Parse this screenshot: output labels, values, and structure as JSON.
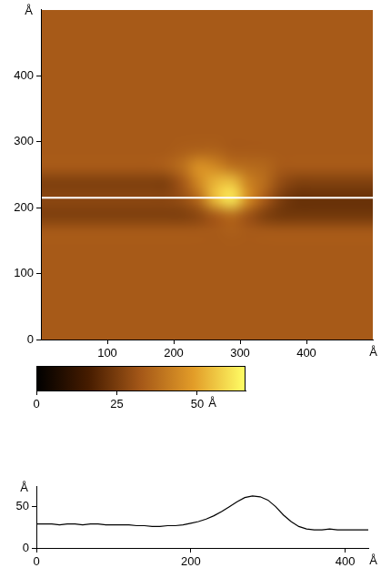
{
  "chart_data": [
    {
      "type": "heatmap",
      "x": [
        12.5,
        37.5,
        62.5,
        87.5,
        112.5,
        137.5,
        162.5,
        187.5,
        212.5,
        237.5,
        262.5,
        287.5,
        312.5,
        337.5,
        362.5,
        387.5,
        412.5,
        437.5,
        462.5,
        487.5
      ],
      "y": [
        12.5,
        37.5,
        62.5,
        87.5,
        112.5,
        137.5,
        162.5,
        187.5,
        212.5,
        237.5,
        262.5,
        287.5,
        312.5,
        337.5,
        362.5,
        387.5,
        412.5,
        437.5,
        462.5,
        487.5
      ],
      "cells": [
        [
          33,
          33,
          33,
          33,
          33,
          33,
          33,
          33,
          33,
          33,
          33,
          33,
          33,
          33,
          33,
          33,
          33,
          33,
          33,
          33
        ],
        [
          33,
          33,
          33,
          33,
          33,
          33,
          33,
          33,
          33,
          33,
          33,
          33,
          33,
          33,
          33,
          33,
          33,
          33,
          33,
          33
        ],
        [
          33,
          33,
          33,
          33,
          33,
          33,
          33,
          33,
          33,
          33,
          33,
          33,
          33,
          33,
          33,
          33,
          33,
          33,
          33,
          33
        ],
        [
          33,
          33,
          33,
          33,
          33,
          33,
          33,
          33,
          33,
          33,
          33,
          33,
          33,
          33,
          33,
          33,
          33,
          33,
          33,
          33
        ],
        [
          33,
          33,
          33,
          33,
          33,
          33,
          33,
          33,
          33,
          33,
          33,
          33,
          33,
          33,
          33,
          33,
          33,
          33,
          33,
          33
        ],
        [
          33,
          33,
          33,
          33,
          33,
          33,
          33,
          33,
          33,
          33,
          33,
          33,
          33,
          33,
          33,
          33,
          33,
          33,
          33,
          33
        ],
        [
          33,
          33,
          33,
          33,
          33,
          33,
          33,
          33,
          33,
          33,
          33,
          34,
          33,
          33,
          33,
          33,
          33,
          33,
          33,
          33
        ],
        [
          26,
          26,
          26,
          26,
          26,
          26,
          26,
          26,
          26,
          28,
          33,
          37,
          31,
          26,
          24,
          24,
          24,
          24,
          24,
          24
        ],
        [
          28,
          28,
          28,
          28,
          28,
          28,
          28,
          28,
          30,
          37,
          54,
          61,
          45,
          33,
          25,
          22,
          22,
          22,
          22,
          22
        ],
        [
          26,
          26,
          26,
          26,
          26,
          26,
          26,
          26,
          32,
          44,
          53,
          55,
          43,
          37,
          29,
          26,
          26,
          26,
          26,
          26
        ],
        [
          33,
          33,
          33,
          33,
          33,
          33,
          33,
          34,
          38,
          46,
          44,
          39,
          37,
          36,
          33,
          33,
          33,
          33,
          33,
          33
        ],
        [
          33,
          33,
          33,
          33,
          33,
          33,
          33,
          33,
          34,
          35,
          35,
          33,
          33,
          33,
          33,
          33,
          33,
          33,
          33,
          33
        ],
        [
          33,
          33,
          33,
          33,
          33,
          33,
          33,
          33,
          33,
          33,
          33,
          33,
          33,
          33,
          33,
          33,
          33,
          33,
          33,
          33
        ],
        [
          33,
          33,
          33,
          33,
          33,
          33,
          33,
          33,
          33,
          33,
          33,
          33,
          33,
          33,
          33,
          33,
          33,
          33,
          33,
          33
        ],
        [
          33,
          33,
          33,
          33,
          33,
          33,
          33,
          33,
          33,
          33,
          33,
          33,
          33,
          33,
          33,
          33,
          33,
          33,
          33,
          33
        ],
        [
          33,
          33,
          33,
          33,
          33,
          33,
          33,
          33,
          33,
          33,
          33,
          33,
          33,
          33,
          33,
          33,
          33,
          33,
          33,
          33
        ],
        [
          33,
          33,
          33,
          33,
          33,
          33,
          33,
          33,
          33,
          33,
          33,
          33,
          33,
          33,
          33,
          33,
          33,
          33,
          33,
          33
        ],
        [
          33,
          33,
          33,
          33,
          33,
          33,
          33,
          33,
          33,
          33,
          33,
          33,
          33,
          33,
          33,
          33,
          33,
          33,
          33,
          33
        ],
        [
          33,
          33,
          33,
          33,
          33,
          33,
          33,
          33,
          33,
          33,
          33,
          33,
          33,
          33,
          33,
          33,
          33,
          33,
          33,
          33
        ],
        [
          33,
          33,
          33,
          33,
          33,
          33,
          33,
          33,
          33,
          33,
          33,
          33,
          33,
          33,
          33,
          33,
          33,
          33,
          33,
          33
        ]
      ],
      "xlim": [
        0,
        500
      ],
      "ylim": [
        0,
        500
      ],
      "xticks": [
        100,
        200,
        300,
        400
      ],
      "yticks": [
        0,
        100,
        200,
        300,
        400
      ],
      "x_label": "Å",
      "y_label": "Å",
      "grid": false,
      "scan_line_y": 215,
      "colorbar": {
        "range": [
          0,
          65
        ],
        "ticks": [
          0,
          25,
          50
        ],
        "label": "Å"
      }
    },
    {
      "type": "line",
      "x": [
        0,
        10,
        20,
        30,
        40,
        50,
        60,
        70,
        80,
        90,
        100,
        110,
        120,
        130,
        140,
        150,
        160,
        170,
        180,
        190,
        200,
        210,
        220,
        230,
        240,
        250,
        260,
        270,
        280,
        290,
        300,
        310,
        320,
        330,
        340,
        350,
        360,
        370,
        380,
        390,
        400,
        410,
        420,
        430
      ],
      "values": [
        29,
        29,
        29,
        28,
        29,
        29,
        28,
        29,
        29,
        28,
        28,
        28,
        28,
        27,
        27,
        26,
        26,
        27,
        27,
        28,
        30,
        32,
        35,
        39,
        44,
        50,
        56,
        61,
        63,
        62,
        58,
        50,
        40,
        32,
        26,
        23,
        22,
        22,
        23,
        22,
        22,
        22,
        22,
        22
      ],
      "color": "#000000",
      "xlim": [
        0,
        430
      ],
      "ylim": [
        0,
        75
      ],
      "xticks": [
        0,
        200,
        400
      ],
      "yticks": [
        0,
        50
      ],
      "x_label": "Å",
      "y_label": "Å",
      "grid": false
    }
  ]
}
